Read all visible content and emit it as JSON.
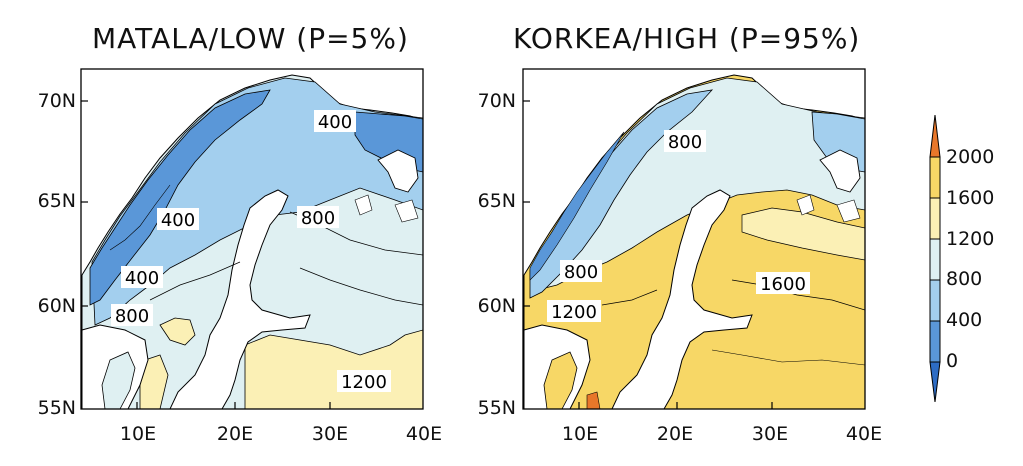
{
  "panels": [
    {
      "title": "MATALA/LOW (P=5%)",
      "contour_labels": [
        "400",
        "400",
        "800",
        "400",
        "800",
        "1200"
      ]
    },
    {
      "title": "KORKEA/HIGH (P=95%)",
      "contour_labels": [
        "800",
        "1600",
        "800",
        "1200"
      ]
    }
  ],
  "lat_ticks": [
    "70N",
    "65N",
    "60N",
    "55N"
  ],
  "lon_ticks": [
    "10E",
    "20E",
    "30E",
    "40E"
  ],
  "colorbar": {
    "ticks": [
      "2000",
      "1600",
      "1200",
      "800",
      "400",
      "0"
    ],
    "colors": [
      "#e8772a",
      "#f7d766",
      "#fbf0b5",
      "#dff0f2",
      "#a3cfee",
      "#5a97d8",
      "#2d6cc4"
    ]
  },
  "palette": {
    "sea": "#ffffff",
    "land_line": "#000000"
  }
}
